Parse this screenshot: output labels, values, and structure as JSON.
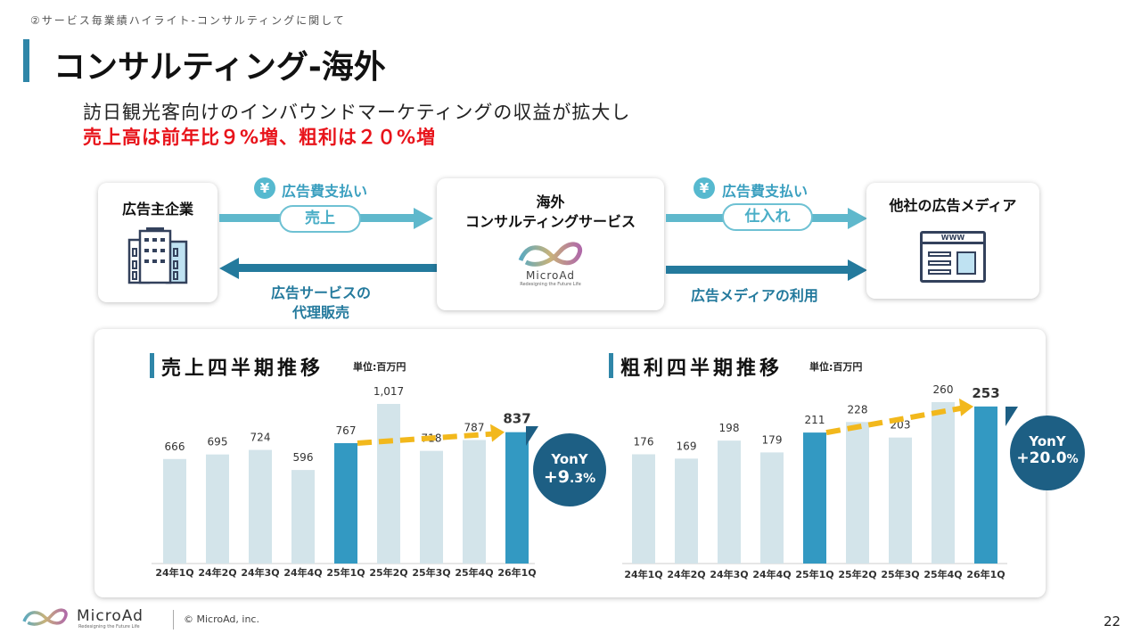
{
  "breadcrumb": "②サービス毎業績ハイライト-コンサルティングに関して",
  "title": "コンサルティング-海外",
  "subtitle_line1": "訪日観光客向けのインバウンドマーケティングの収益が拡大し",
  "subtitle_line2": "売上高は前年比９%増、粗利は２０%増",
  "diagram": {
    "advertiser": "広告主企業",
    "service_line1": "海外",
    "service_line2": "コンサルティングサービス",
    "media": "他社の広告メディア",
    "yen": "¥",
    "payment_left": "広告費支払い",
    "sales_pill": "売上",
    "agency_line1": "広告サービスの",
    "agency_line2": "代理販売",
    "payment_right": "広告費支払い",
    "purchase_pill": "仕入れ",
    "media_use": "広告メディアの利用",
    "logo_name": "MicroAd",
    "logo_tagline": "Redesigning the Future Life",
    "www": "WWW"
  },
  "chart_data": [
    {
      "type": "bar",
      "title": "売上四半期推移",
      "unit": "単位:百万円",
      "categories": [
        "24年1Q",
        "24年2Q",
        "24年3Q",
        "24年4Q",
        "25年1Q",
        "25年2Q",
        "25年3Q",
        "25年4Q",
        "26年1Q"
      ],
      "values": [
        666,
        695,
        724,
        596,
        767,
        1017,
        718,
        787,
        837
      ],
      "labels": [
        "666",
        "695",
        "724",
        "596",
        "767",
        "1,017",
        "718",
        "787",
        "837"
      ],
      "highlight": [
        4,
        8
      ],
      "ylim": [
        0,
        1017
      ],
      "badge_line1": "YonY",
      "badge_value": "+9",
      "badge_decimal": ".3%"
    },
    {
      "type": "bar",
      "title": "粗利四半期推移",
      "unit": "単位:百万円",
      "categories": [
        "24年1Q",
        "24年2Q",
        "24年3Q",
        "24年4Q",
        "25年1Q",
        "25年2Q",
        "25年3Q",
        "25年4Q",
        "26年1Q"
      ],
      "values": [
        176,
        169,
        198,
        179,
        211,
        228,
        203,
        260,
        253
      ],
      "labels": [
        "176",
        "169",
        "198",
        "179",
        "211",
        "228",
        "203",
        "260",
        "253"
      ],
      "highlight": [
        4,
        8
      ],
      "ylim": [
        0,
        260
      ],
      "badge_line1": "YonY",
      "badge_value": "+20.0",
      "badge_decimal": "%"
    }
  ],
  "colors": {
    "highlight": "#3399c2",
    "normal": "#d3e4ea",
    "arrow": "#f2b81c",
    "badge": "#1d5f84"
  },
  "footer": {
    "logo": "MicroAd",
    "tagline": "Redesigning the Future Life",
    "copyright": "© MicroAd, inc.",
    "page": "22"
  }
}
